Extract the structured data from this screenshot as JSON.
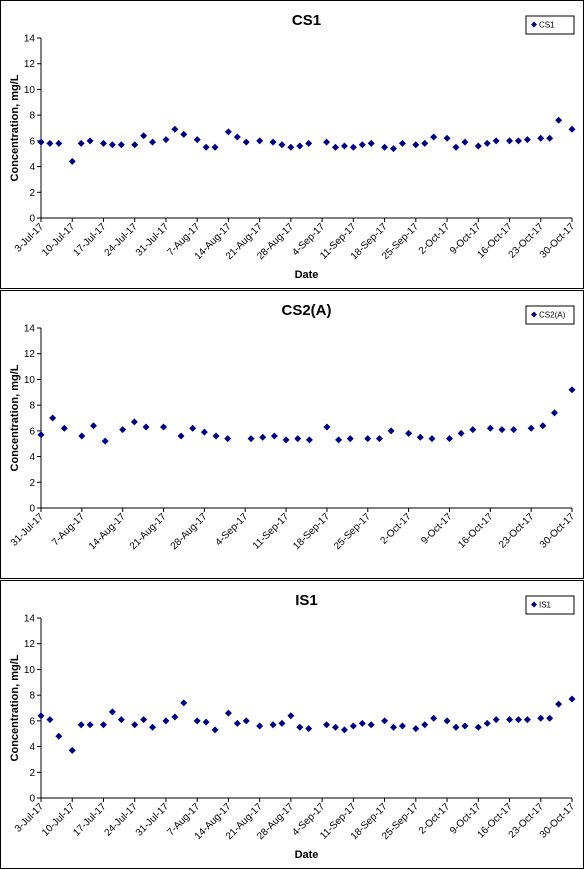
{
  "chart_data": [
    {
      "type": "scatter",
      "title": "CS1",
      "xlabel": "Date",
      "ylabel": "Concentration, mg/L",
      "ylim": [
        0,
        14
      ],
      "yticks": [
        0,
        2,
        4,
        6,
        8,
        10,
        12,
        14
      ],
      "xlim": [
        "2017-07-03",
        "2017-10-30"
      ],
      "xtick_labels": [
        "3-Jul-17",
        "10-Jul-17",
        "17-Jul-17",
        "24-Jul-17",
        "31-Jul-17",
        "7-Aug-17",
        "14-Aug-17",
        "21-Aug-17",
        "28-Aug-17",
        "4-Sep-17",
        "11-Sep-17",
        "18-Sep-17",
        "25-Sep-17",
        "2-Oct-17",
        "9-Oct-17",
        "16-Oct-17",
        "23-Oct-17",
        "30-Oct-17"
      ],
      "grid": false,
      "legend": "top-right",
      "marker_color": "#00007f",
      "series": [
        {
          "name": "CS1",
          "points": [
            [
              "2017-07-03",
              5.9
            ],
            [
              "2017-07-05",
              5.8
            ],
            [
              "2017-07-07",
              5.8
            ],
            [
              "2017-07-10",
              4.4
            ],
            [
              "2017-07-12",
              5.8
            ],
            [
              "2017-07-14",
              6.0
            ],
            [
              "2017-07-17",
              5.8
            ],
            [
              "2017-07-19",
              5.7
            ],
            [
              "2017-07-21",
              5.7
            ],
            [
              "2017-07-24",
              5.7
            ],
            [
              "2017-07-26",
              6.4
            ],
            [
              "2017-07-28",
              5.9
            ],
            [
              "2017-07-31",
              6.1
            ],
            [
              "2017-08-02",
              6.9
            ],
            [
              "2017-08-04",
              6.5
            ],
            [
              "2017-08-07",
              6.1
            ],
            [
              "2017-08-09",
              5.5
            ],
            [
              "2017-08-11",
              5.5
            ],
            [
              "2017-08-14",
              6.7
            ],
            [
              "2017-08-16",
              6.3
            ],
            [
              "2017-08-18",
              5.9
            ],
            [
              "2017-08-21",
              6.0
            ],
            [
              "2017-08-24",
              5.9
            ],
            [
              "2017-08-26",
              5.7
            ],
            [
              "2017-08-28",
              5.5
            ],
            [
              "2017-08-30",
              5.6
            ],
            [
              "2017-09-01",
              5.8
            ],
            [
              "2017-09-05",
              5.9
            ],
            [
              "2017-09-07",
              5.5
            ],
            [
              "2017-09-09",
              5.6
            ],
            [
              "2017-09-11",
              5.5
            ],
            [
              "2017-09-13",
              5.7
            ],
            [
              "2017-09-15",
              5.8
            ],
            [
              "2017-09-18",
              5.5
            ],
            [
              "2017-09-20",
              5.4
            ],
            [
              "2017-09-22",
              5.8
            ],
            [
              "2017-09-25",
              5.7
            ],
            [
              "2017-09-27",
              5.8
            ],
            [
              "2017-09-29",
              6.3
            ],
            [
              "2017-10-02",
              6.2
            ],
            [
              "2017-10-04",
              5.5
            ],
            [
              "2017-10-06",
              5.9
            ],
            [
              "2017-10-09",
              5.6
            ],
            [
              "2017-10-11",
              5.8
            ],
            [
              "2017-10-13",
              6.0
            ],
            [
              "2017-10-16",
              6.0
            ],
            [
              "2017-10-18",
              6.0
            ],
            [
              "2017-10-20",
              6.1
            ],
            [
              "2017-10-23",
              6.2
            ],
            [
              "2017-10-25",
              6.2
            ],
            [
              "2017-10-27",
              7.6
            ],
            [
              "2017-10-30",
              6.9
            ]
          ]
        }
      ]
    },
    {
      "type": "scatter",
      "title": "CS2(A)",
      "xlabel": "",
      "ylabel": "Concentration, mg/L",
      "ylim": [
        0,
        14
      ],
      "yticks": [
        0,
        2,
        4,
        6,
        8,
        10,
        12,
        14
      ],
      "xlim": [
        "2017-07-31",
        "2017-10-30"
      ],
      "xtick_labels": [
        "31-Jul-17",
        "7-Aug-17",
        "14-Aug-17",
        "21-Aug-17",
        "28-Aug-17",
        "4-Sep-17",
        "11-Sep-17",
        "18-Sep-17",
        "25-Sep-17",
        "2-Oct-17",
        "9-Oct-17",
        "16-Oct-17",
        "23-Oct-17",
        "30-Oct-17"
      ],
      "grid": false,
      "legend": "top-right",
      "marker_color": "#00007f",
      "series": [
        {
          "name": "CS2(A)",
          "points": [
            [
              "2017-07-31",
              5.7
            ],
            [
              "2017-08-02",
              7.0
            ],
            [
              "2017-08-04",
              6.2
            ],
            [
              "2017-08-07",
              5.6
            ],
            [
              "2017-08-09",
              6.4
            ],
            [
              "2017-08-11",
              5.2
            ],
            [
              "2017-08-14",
              6.1
            ],
            [
              "2017-08-16",
              6.7
            ],
            [
              "2017-08-18",
              6.3
            ],
            [
              "2017-08-21",
              6.3
            ],
            [
              "2017-08-24",
              5.6
            ],
            [
              "2017-08-26",
              6.2
            ],
            [
              "2017-08-28",
              5.9
            ],
            [
              "2017-08-30",
              5.6
            ],
            [
              "2017-09-01",
              5.4
            ],
            [
              "2017-09-05",
              5.4
            ],
            [
              "2017-09-07",
              5.5
            ],
            [
              "2017-09-09",
              5.6
            ],
            [
              "2017-09-11",
              5.3
            ],
            [
              "2017-09-13",
              5.4
            ],
            [
              "2017-09-15",
              5.3
            ],
            [
              "2017-09-18",
              6.3
            ],
            [
              "2017-09-20",
              5.3
            ],
            [
              "2017-09-22",
              5.4
            ],
            [
              "2017-09-25",
              5.4
            ],
            [
              "2017-09-27",
              5.4
            ],
            [
              "2017-09-29",
              6.0
            ],
            [
              "2017-10-02",
              5.8
            ],
            [
              "2017-10-04",
              5.5
            ],
            [
              "2017-10-06",
              5.4
            ],
            [
              "2017-10-09",
              5.4
            ],
            [
              "2017-10-11",
              5.8
            ],
            [
              "2017-10-13",
              6.1
            ],
            [
              "2017-10-16",
              6.2
            ],
            [
              "2017-10-18",
              6.1
            ],
            [
              "2017-10-20",
              6.1
            ],
            [
              "2017-10-23",
              6.2
            ],
            [
              "2017-10-25",
              6.4
            ],
            [
              "2017-10-27",
              7.4
            ],
            [
              "2017-10-30",
              9.2
            ]
          ]
        }
      ]
    },
    {
      "type": "scatter",
      "title": "IS1",
      "xlabel": "Date",
      "ylabel": "Concentration, mg/L",
      "ylim": [
        0,
        14
      ],
      "yticks": [
        0,
        2,
        4,
        6,
        8,
        10,
        12,
        14
      ],
      "xlim": [
        "2017-07-03",
        "2017-10-30"
      ],
      "xtick_labels": [
        "3-Jul-17",
        "10-Jul-17",
        "17-Jul-17",
        "24-Jul-17",
        "31-Jul-17",
        "7-Aug-17",
        "14-Aug-17",
        "21-Aug-17",
        "28-Aug-17",
        "4-Sep-17",
        "11-Sep-17",
        "18-Sep-17",
        "25-Sep-17",
        "2-Oct-17",
        "9-Oct-17",
        "16-Oct-17",
        "23-Oct-17",
        "30-Oct-17"
      ],
      "grid": false,
      "legend": "top-right",
      "marker_color": "#00007f",
      "series": [
        {
          "name": "IS1",
          "points": [
            [
              "2017-07-03",
              6.4
            ],
            [
              "2017-07-05",
              6.1
            ],
            [
              "2017-07-07",
              4.8
            ],
            [
              "2017-07-10",
              3.7
            ],
            [
              "2017-07-12",
              5.7
            ],
            [
              "2017-07-14",
              5.7
            ],
            [
              "2017-07-17",
              5.7
            ],
            [
              "2017-07-19",
              6.7
            ],
            [
              "2017-07-21",
              6.1
            ],
            [
              "2017-07-24",
              5.7
            ],
            [
              "2017-07-26",
              6.1
            ],
            [
              "2017-07-28",
              5.5
            ],
            [
              "2017-07-31",
              6.0
            ],
            [
              "2017-08-02",
              6.3
            ],
            [
              "2017-08-04",
              7.4
            ],
            [
              "2017-08-07",
              6.0
            ],
            [
              "2017-08-09",
              5.9
            ],
            [
              "2017-08-11",
              5.3
            ],
            [
              "2017-08-14",
              6.6
            ],
            [
              "2017-08-16",
              5.8
            ],
            [
              "2017-08-18",
              6.0
            ],
            [
              "2017-08-21",
              5.6
            ],
            [
              "2017-08-24",
              5.7
            ],
            [
              "2017-08-26",
              5.8
            ],
            [
              "2017-08-28",
              6.4
            ],
            [
              "2017-08-30",
              5.5
            ],
            [
              "2017-09-01",
              5.4
            ],
            [
              "2017-09-05",
              5.7
            ],
            [
              "2017-09-07",
              5.5
            ],
            [
              "2017-09-09",
              5.3
            ],
            [
              "2017-09-11",
              5.6
            ],
            [
              "2017-09-13",
              5.8
            ],
            [
              "2017-09-15",
              5.7
            ],
            [
              "2017-09-18",
              6.0
            ],
            [
              "2017-09-20",
              5.5
            ],
            [
              "2017-09-22",
              5.6
            ],
            [
              "2017-09-25",
              5.4
            ],
            [
              "2017-09-27",
              5.7
            ],
            [
              "2017-09-29",
              6.2
            ],
            [
              "2017-10-02",
              6.0
            ],
            [
              "2017-10-04",
              5.5
            ],
            [
              "2017-10-06",
              5.6
            ],
            [
              "2017-10-09",
              5.5
            ],
            [
              "2017-10-11",
              5.8
            ],
            [
              "2017-10-13",
              6.1
            ],
            [
              "2017-10-16",
              6.1
            ],
            [
              "2017-10-18",
              6.1
            ],
            [
              "2017-10-20",
              6.1
            ],
            [
              "2017-10-23",
              6.2
            ],
            [
              "2017-10-25",
              6.2
            ],
            [
              "2017-10-27",
              7.3
            ],
            [
              "2017-10-30",
              7.7
            ]
          ]
        }
      ]
    }
  ]
}
